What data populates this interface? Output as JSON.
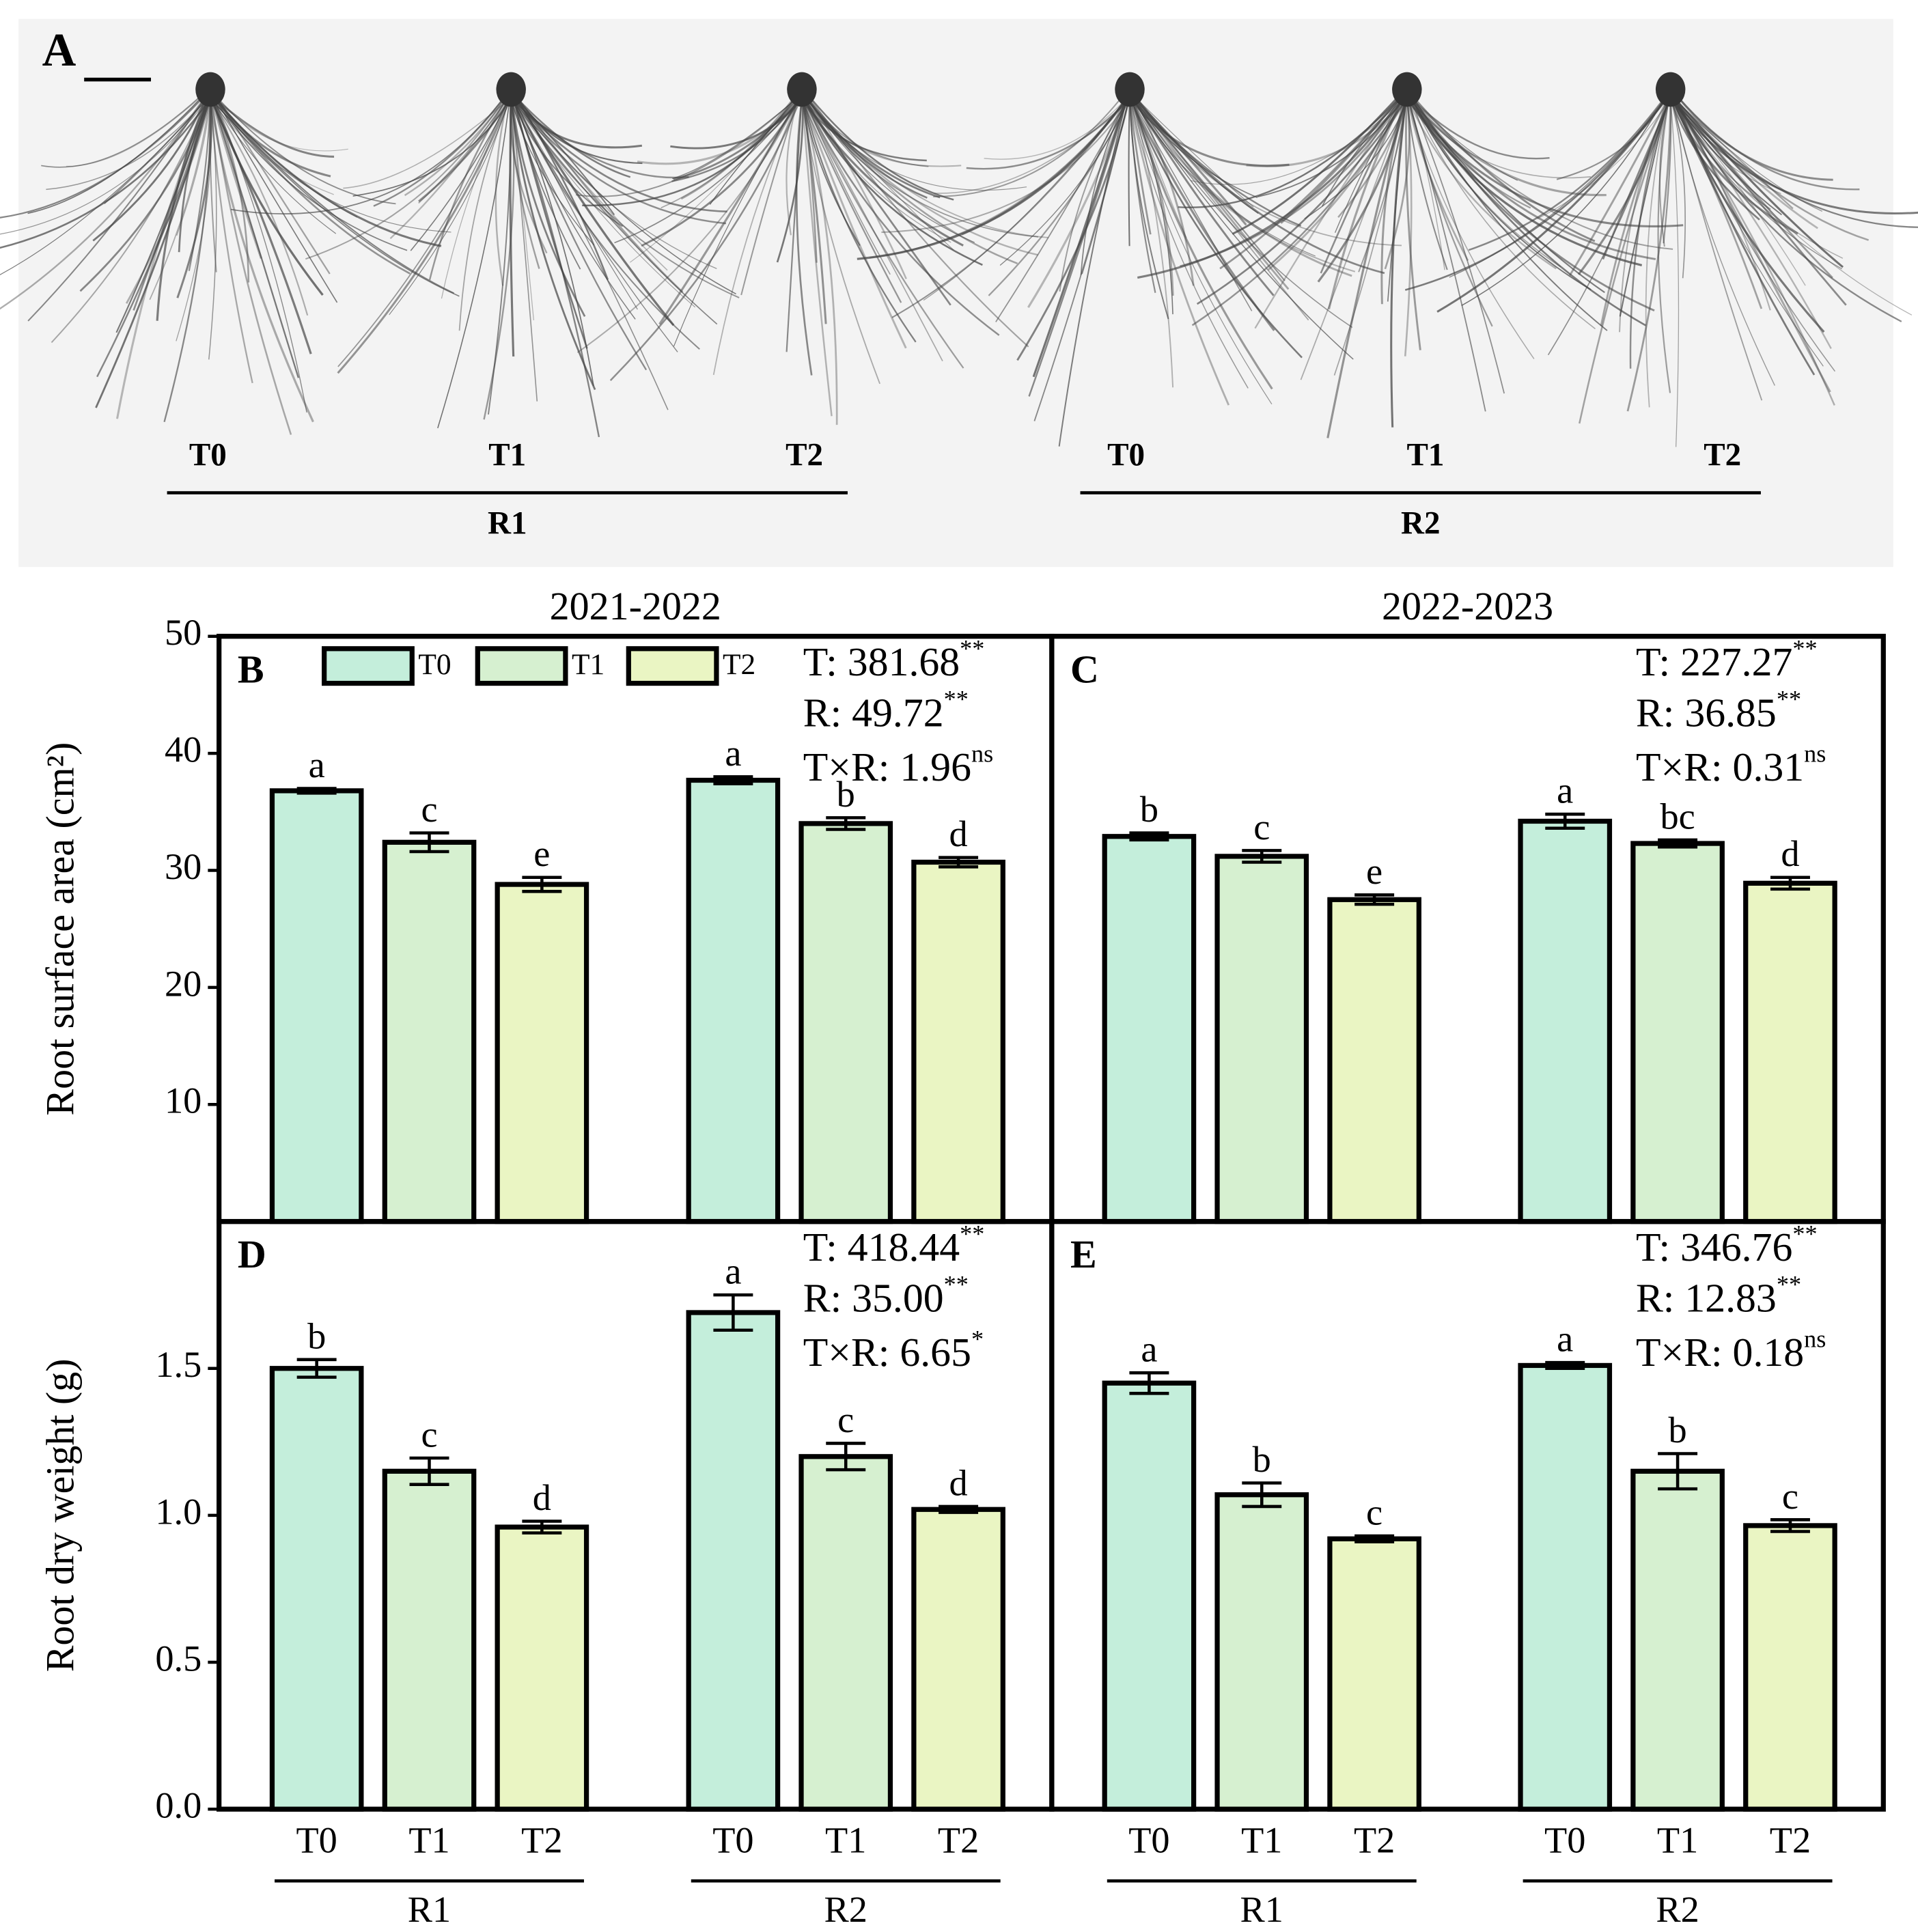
{
  "photo_panel": {
    "label": "A",
    "groups": [
      {
        "name": "R1",
        "treatments": [
          "T0",
          "T1",
          "T2"
        ]
      },
      {
        "name": "R2",
        "treatments": [
          "T0",
          "T1",
          "T2"
        ]
      }
    ]
  },
  "chart_data": [
    {
      "type": "bar",
      "panel": "B",
      "title": "2021-2022",
      "ylabel": "Root surface area (cm²)",
      "categories": [
        "R1",
        "R2"
      ],
      "series": [
        {
          "name": "T0",
          "color": "#c4eedb",
          "values": [
            36.8,
            37.7
          ],
          "errors": [
            0.2,
            0.3
          ],
          "letters": [
            "a",
            "a"
          ]
        },
        {
          "name": "T1",
          "color": "#d6f0d0",
          "values": [
            32.4,
            34.0
          ],
          "errors": [
            0.8,
            0.5
          ],
          "letters": [
            "c",
            "b"
          ]
        },
        {
          "name": "T2",
          "color": "#eaf5c3",
          "values": [
            28.8,
            30.7
          ],
          "errors": [
            0.6,
            0.4
          ],
          "letters": [
            "e",
            "d"
          ]
        }
      ],
      "ylim": [
        0,
        50
      ],
      "yticks": [
        10,
        20,
        30,
        40,
        50
      ],
      "show_y_ticks": true,
      "show_x_labels": false,
      "legend": true,
      "stats": [
        {
          "text": "T: 381.68",
          "sup": "**"
        },
        {
          "text": "R: 49.72",
          "sup": "**"
        },
        {
          "text": "T×R: 1.96",
          "sup": "ns"
        }
      ]
    },
    {
      "type": "bar",
      "panel": "C",
      "title": "2022-2023",
      "categories": [
        "R1",
        "R2"
      ],
      "series": [
        {
          "name": "T0",
          "color": "#c4eedb",
          "values": [
            32.9,
            34.2
          ],
          "errors": [
            0.3,
            0.6
          ],
          "letters": [
            "b",
            "a"
          ]
        },
        {
          "name": "T1",
          "color": "#d6f0d0",
          "values": [
            31.2,
            32.3
          ],
          "errors": [
            0.5,
            0.3
          ],
          "letters": [
            "c",
            "bc"
          ]
        },
        {
          "name": "T2",
          "color": "#eaf5c3",
          "values": [
            27.5,
            28.9
          ],
          "errors": [
            0.4,
            0.5
          ],
          "letters": [
            "e",
            "d"
          ]
        }
      ],
      "ylim": [
        0,
        50
      ],
      "yticks": [
        10,
        20,
        30,
        40,
        50
      ],
      "show_y_ticks": false,
      "show_x_labels": false,
      "legend": false,
      "stats": [
        {
          "text": "T: 227.27",
          "sup": "**"
        },
        {
          "text": "R: 36.85",
          "sup": "**"
        },
        {
          "text": "T×R: 0.31",
          "sup": "ns"
        }
      ]
    },
    {
      "type": "bar",
      "panel": "D",
      "ylabel": "Root dry weight (g)",
      "categories": [
        "R1",
        "R2"
      ],
      "series": [
        {
          "name": "T0",
          "color": "#c4eedb",
          "values": [
            1.5,
            1.69
          ],
          "errors": [
            0.03,
            0.06
          ],
          "letters": [
            "b",
            "a"
          ]
        },
        {
          "name": "T1",
          "color": "#d6f0d0",
          "values": [
            1.15,
            1.2
          ],
          "errors": [
            0.045,
            0.045
          ],
          "letters": [
            "c",
            "c"
          ]
        },
        {
          "name": "T2",
          "color": "#eaf5c3",
          "values": [
            0.96,
            1.02
          ],
          "errors": [
            0.02,
            0.01
          ],
          "letters": [
            "d",
            "d"
          ]
        }
      ],
      "ylim": [
        0,
        2.0
      ],
      "yticks": [
        {
          "value": 0,
          "label": "0.0"
        },
        0.5,
        {
          "value": 1,
          "label": "1.0"
        },
        1.5
      ],
      "show_y_ticks": true,
      "show_x_labels": true,
      "legend": false,
      "stats": [
        {
          "text": "T: 418.44",
          "sup": "**"
        },
        {
          "text": "R: 35.00",
          "sup": "**"
        },
        {
          "text": "T×R: 6.65",
          "sup": "*"
        }
      ]
    },
    {
      "type": "bar",
      "panel": "E",
      "categories": [
        "R1",
        "R2"
      ],
      "series": [
        {
          "name": "T0",
          "color": "#c4eedb",
          "values": [
            1.45,
            1.51
          ],
          "errors": [
            0.035,
            0.01
          ],
          "letters": [
            "a",
            "a"
          ]
        },
        {
          "name": "T1",
          "color": "#d6f0d0",
          "values": [
            1.07,
            1.15
          ],
          "errors": [
            0.04,
            0.06
          ],
          "letters": [
            "b",
            "b"
          ]
        },
        {
          "name": "T2",
          "color": "#eaf5c3",
          "values": [
            0.92,
            0.965
          ],
          "errors": [
            0.01,
            0.02
          ],
          "letters": [
            "c",
            "c"
          ]
        }
      ],
      "ylim": [
        0,
        2.0
      ],
      "yticks": [
        {
          "value": 0,
          "label": "0.0"
        },
        0.5,
        {
          "value": 1,
          "label": "1.0"
        },
        1.5
      ],
      "show_y_ticks": false,
      "show_x_labels": true,
      "legend": false,
      "stats": [
        {
          "text": "T: 346.76",
          "sup": "**"
        },
        {
          "text": "R: 12.83",
          "sup": "**"
        },
        {
          "text": "T×R: 0.18",
          "sup": "ns"
        }
      ]
    }
  ]
}
